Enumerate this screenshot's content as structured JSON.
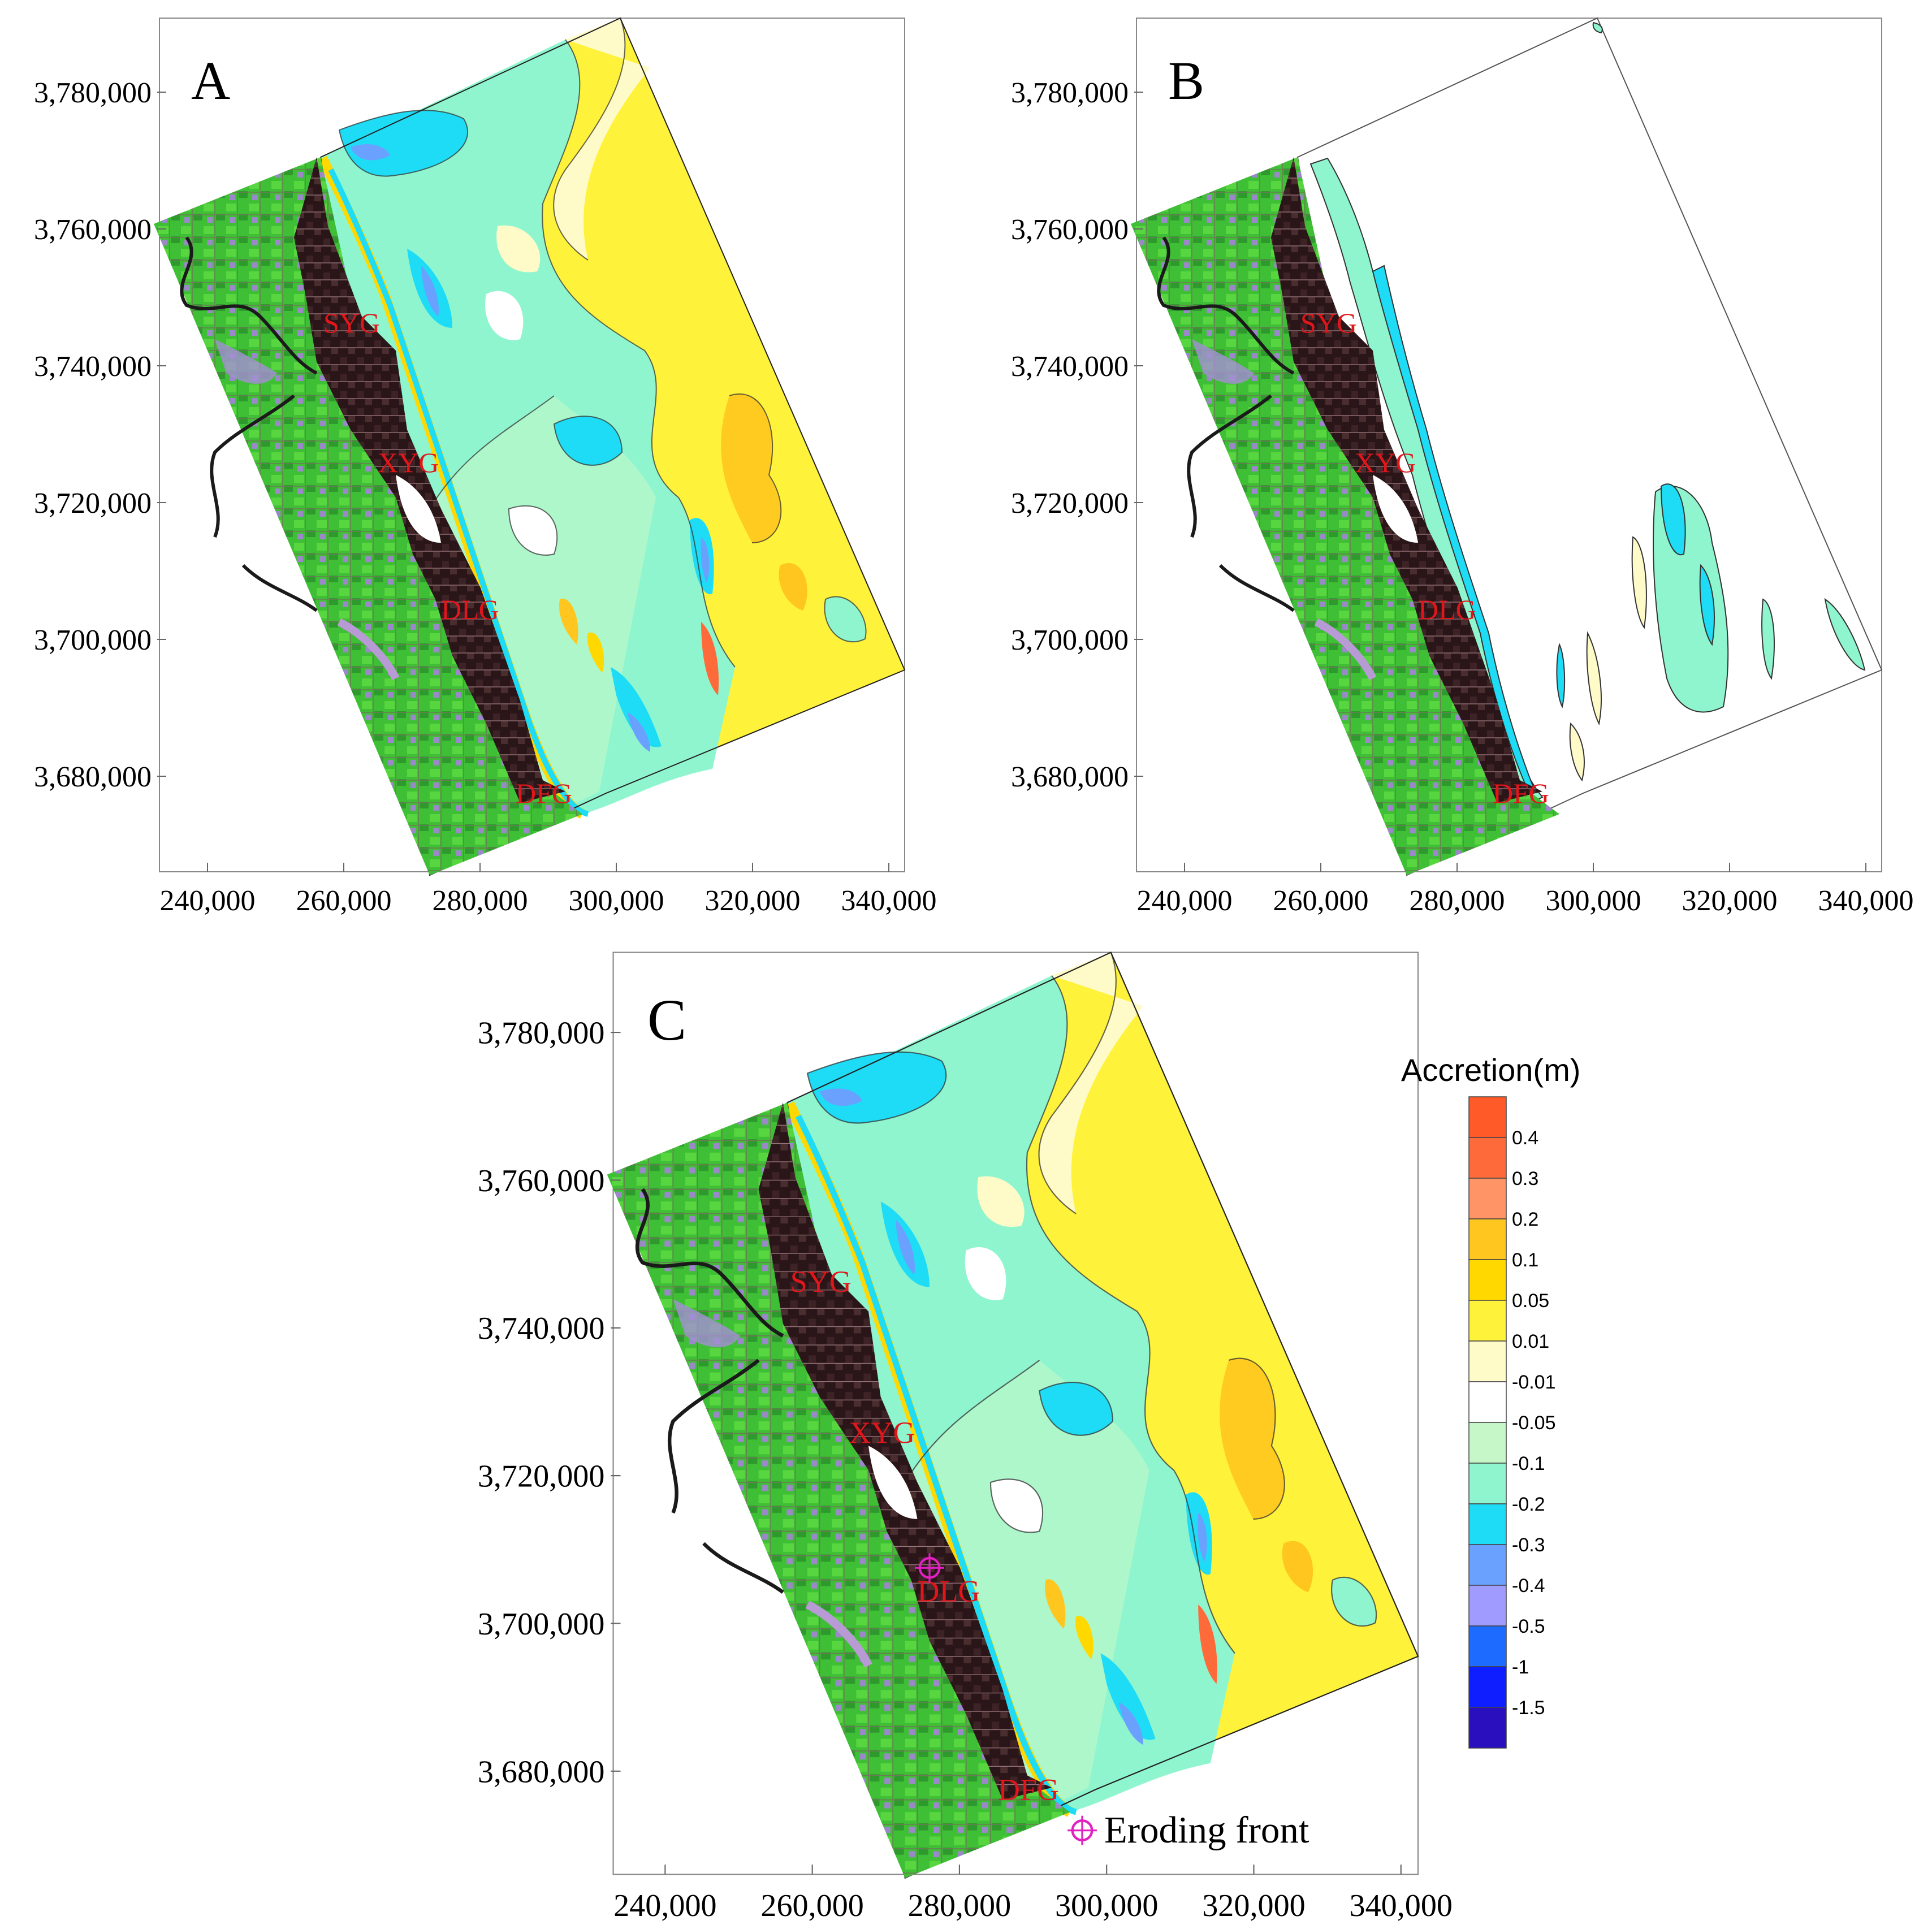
{
  "panels": [
    {
      "letter": "A"
    },
    {
      "letter": "B"
    },
    {
      "letter": "C"
    }
  ],
  "axes": {
    "x_ticks": [
      "240,000",
      "260,000",
      "280,000",
      "300,000",
      "320,000",
      "340,000"
    ],
    "y_ticks": [
      "3,780,000",
      "3,760,000",
      "3,740,000",
      "3,720,000",
      "3,700,000",
      "3,680,000"
    ]
  },
  "places": [
    "SYG",
    "XYG",
    "DLG",
    "DFG"
  ],
  "legend": {
    "title": "Accretion(m)",
    "levels": [
      {
        "label": "0.4",
        "color": "#ff6a3a"
      },
      {
        "label": "0.3",
        "color": "#ff9466"
      },
      {
        "label": "0.2",
        "color": "#ffc61f"
      },
      {
        "label": "0.1",
        "color": "#ffd800"
      },
      {
        "label": "0.05",
        "color": "#fff23a"
      },
      {
        "label": "0.01",
        "color": "#fffbc8"
      },
      {
        "label": "-0.01",
        "color": "#ffffff"
      },
      {
        "label": "-0.05",
        "color": "#c6f7c8"
      },
      {
        "label": "-0.1",
        "color": "#8ff5cf"
      },
      {
        "label": "-0.2",
        "color": "#1edcf5"
      },
      {
        "label": "-0.3",
        "color": "#6aa1ff"
      },
      {
        "label": "-0.4",
        "color": "#a09cff"
      },
      {
        "label": "-0.5",
        "color": "#1e6cff"
      },
      {
        "label": "-1",
        "color": "#0f1eff"
      },
      {
        "label": "-1.5",
        "color": "#2a0fbf"
      }
    ],
    "top_color": "#ff5a28"
  },
  "marker": {
    "label": "Eroding front",
    "color": "#e020c0"
  }
}
